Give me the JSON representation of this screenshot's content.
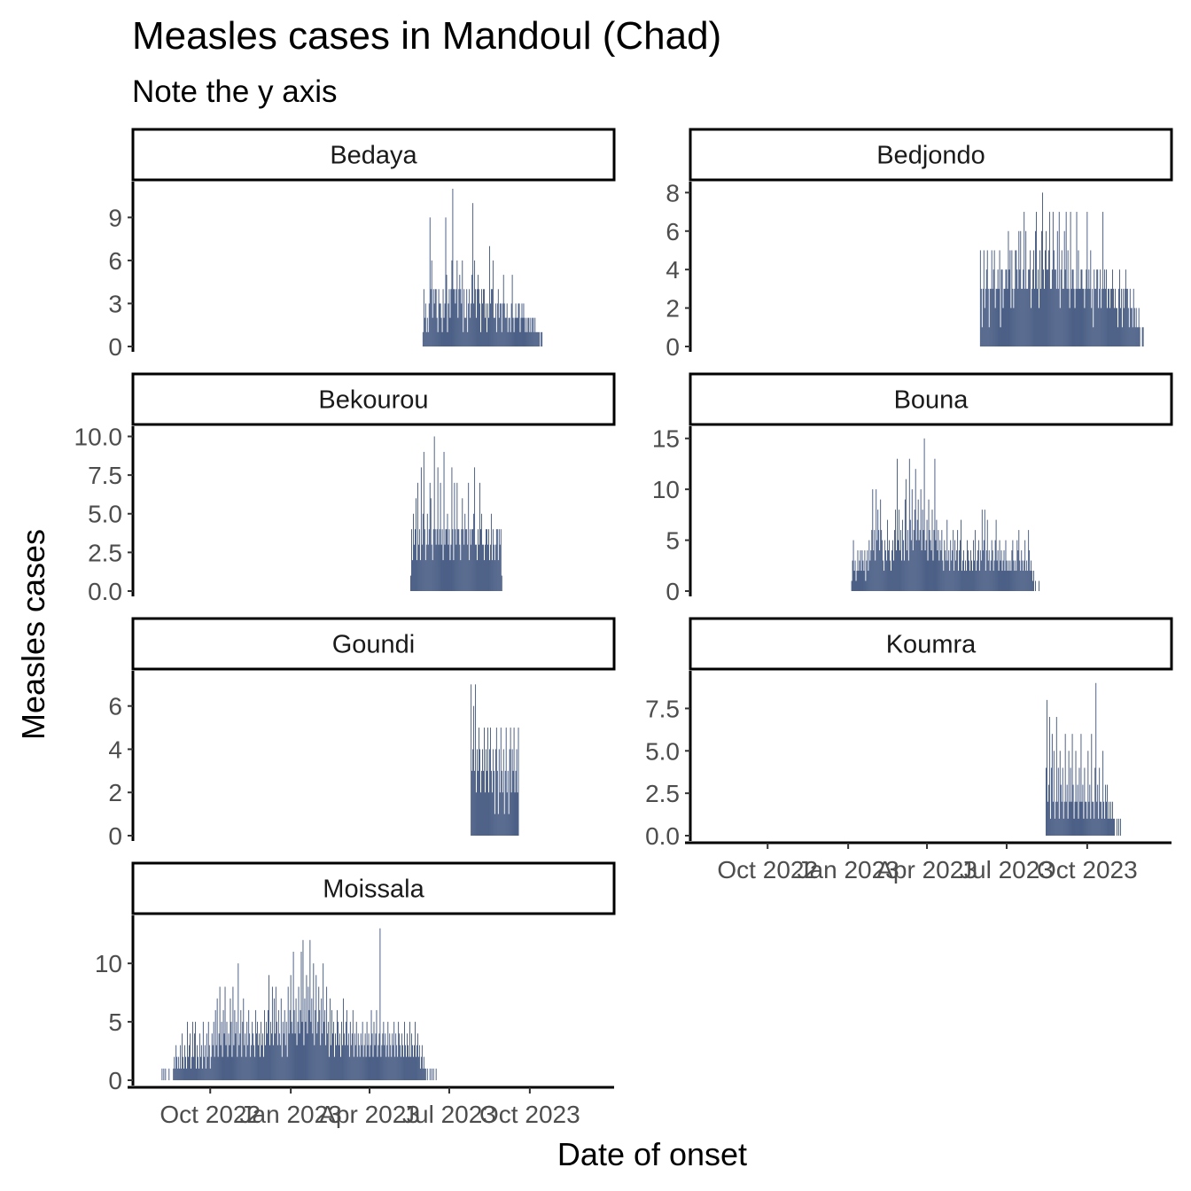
{
  "chart_data": {
    "type": "bar",
    "title": "Measles cases in Mandoul (Chad)",
    "subtitle": "Note the y axis",
    "xlabel": "Date of onset",
    "ylabel": "Measles cases",
    "bar_color": "#2f4673",
    "x_date_range": [
      "2022-07-29",
      "2023-12-12"
    ],
    "x_ticks": [
      {
        "date": "2022-10-01",
        "label": "Oct 2022"
      },
      {
        "date": "2023-01-01",
        "label": "Jan 2023"
      },
      {
        "date": "2023-04-01",
        "label": "Apr 2023"
      },
      {
        "date": "2023-07-01",
        "label": "Jul 2023"
      },
      {
        "date": "2023-10-01",
        "label": "Oct 2023"
      }
    ],
    "panels": [
      {
        "name": "Bedaya",
        "ylim": [
          0,
          11
        ],
        "y_ticks": [
          {
            "v": 0,
            "label": "0"
          },
          {
            "v": 3,
            "label": "3"
          },
          {
            "v": 6,
            "label": "6"
          },
          {
            "v": 9,
            "label": "9"
          }
        ],
        "start": "2023-06-01",
        "values": [
          1,
          4,
          2,
          3,
          1,
          2,
          1,
          3,
          9,
          4,
          6,
          2,
          4,
          3,
          4,
          4,
          2,
          1,
          4,
          3,
          3,
          2,
          1,
          4,
          2,
          3,
          9,
          5,
          1,
          3,
          4,
          2,
          4,
          6,
          11,
          4,
          4,
          3,
          4,
          6,
          2,
          4,
          5,
          4,
          3,
          6,
          1,
          4,
          2,
          2,
          4,
          1,
          3,
          4,
          2,
          3,
          5,
          10,
          3,
          6,
          4,
          2,
          4,
          5,
          4,
          3,
          1,
          4,
          3,
          4,
          4,
          2,
          3,
          1,
          3,
          2,
          7,
          3,
          4,
          4,
          6,
          2,
          2,
          3,
          1,
          3,
          4,
          2,
          3,
          3,
          1,
          3,
          5,
          3,
          2,
          2,
          3,
          1,
          2,
          2,
          1,
          3,
          5,
          2,
          1,
          2,
          3,
          2,
          2,
          3,
          3,
          1,
          2,
          3,
          2,
          3,
          2,
          1,
          2,
          1,
          2,
          2,
          1,
          2,
          1,
          2,
          2,
          1,
          2,
          1,
          1,
          1,
          1,
          1,
          0,
          1,
          1
        ]
      },
      {
        "name": "Bedjondo",
        "ylim": [
          0,
          8.2
        ],
        "y_ticks": [
          {
            "v": 0,
            "label": "0"
          },
          {
            "v": 2,
            "label": "2"
          },
          {
            "v": 4,
            "label": "4"
          },
          {
            "v": 6,
            "label": "6"
          },
          {
            "v": 8,
            "label": "8"
          }
        ],
        "start": "2023-06-01",
        "values": [
          5,
          3,
          1,
          3,
          5,
          2,
          3,
          4,
          5,
          3,
          1,
          3,
          3,
          5,
          3,
          4,
          5,
          2,
          3,
          3,
          4,
          3,
          5,
          1,
          4,
          4,
          2,
          3,
          3,
          4,
          4,
          3,
          6,
          4,
          5,
          2,
          5,
          3,
          2,
          3,
          5,
          5,
          4,
          3,
          6,
          4,
          6,
          3,
          3,
          4,
          7,
          3,
          6,
          3,
          3,
          4,
          4,
          5,
          2,
          3,
          4,
          5,
          3,
          6,
          7,
          3,
          4,
          2,
          5,
          3,
          6,
          8,
          4,
          3,
          5,
          6,
          4,
          4,
          5,
          7,
          3,
          3,
          4,
          7,
          5,
          4,
          4,
          3,
          6,
          3,
          7,
          2,
          4,
          5,
          3,
          3,
          6,
          4,
          7,
          3,
          5,
          3,
          2,
          7,
          3,
          4,
          4,
          3,
          2,
          3,
          7,
          3,
          5,
          3,
          3,
          4,
          4,
          3,
          3,
          2,
          3,
          4,
          7,
          3,
          4,
          3,
          5,
          2,
          3,
          1,
          4,
          3,
          3,
          4,
          4,
          2,
          3,
          4,
          2,
          3,
          7,
          3,
          4,
          3,
          4,
          2,
          3,
          3,
          2,
          3,
          3,
          4,
          3,
          2,
          3,
          2,
          2,
          1,
          3,
          4,
          2,
          3,
          1,
          3,
          2,
          3,
          4,
          3,
          3,
          2,
          1,
          3,
          2,
          2,
          1,
          3,
          2,
          1,
          2,
          1,
          1,
          2,
          1,
          0,
          0,
          1,
          1
        ]
      },
      {
        "name": "Bekourou",
        "ylim": [
          0,
          10.2
        ],
        "y_ticks": [
          {
            "v": 0,
            "label": "0.0"
          },
          {
            "v": 2.5,
            "label": "2.5"
          },
          {
            "v": 5,
            "label": "5.0"
          },
          {
            "v": 7.5,
            "label": "7.5"
          },
          {
            "v": 10,
            "label": "10.0"
          }
        ],
        "start": "2023-05-18",
        "values": [
          1,
          4,
          2,
          5,
          3,
          4,
          6,
          2,
          7,
          3,
          4,
          2,
          8,
          3,
          5,
          9,
          4,
          2,
          3,
          5,
          3,
          4,
          7,
          6,
          3,
          2,
          4,
          10,
          4,
          3,
          4,
          8,
          3,
          4,
          7,
          3,
          4,
          2,
          9,
          3,
          4,
          4,
          5,
          3,
          4,
          2,
          3,
          8,
          4,
          2,
          7,
          4,
          3,
          7,
          4,
          4,
          3,
          2,
          4,
          6,
          4,
          3,
          5,
          4,
          4,
          3,
          7,
          2,
          4,
          3,
          4,
          4,
          5,
          8,
          3,
          3,
          2,
          4,
          3,
          7,
          4,
          5,
          3,
          3,
          2,
          3,
          4,
          4,
          3,
          4,
          2,
          3,
          5,
          2,
          4,
          3,
          2,
          3,
          4,
          4,
          2,
          4,
          3,
          4,
          1
        ]
      },
      {
        "name": "Bouna",
        "ylim": [
          0,
          15.5
        ],
        "y_ticks": [
          {
            "v": 0,
            "label": "0"
          },
          {
            "v": 5,
            "label": "5"
          },
          {
            "v": 10,
            "label": "10"
          },
          {
            "v": 15,
            "label": "15"
          }
        ],
        "start": "2023-01-05",
        "values": [
          1,
          3,
          5,
          2,
          3,
          1,
          2,
          4,
          2,
          3,
          4,
          2,
          4,
          3,
          2,
          4,
          1,
          3,
          4,
          2,
          5,
          3,
          4,
          6,
          10,
          4,
          6,
          3,
          10,
          5,
          8,
          6,
          4,
          9,
          6,
          5,
          3,
          2,
          5,
          4,
          3,
          7,
          4,
          5,
          3,
          2,
          4,
          5,
          3,
          6,
          8,
          4,
          13,
          5,
          8,
          4,
          6,
          3,
          7,
          5,
          3,
          9,
          11,
          4,
          6,
          3,
          13,
          7,
          5,
          10,
          4,
          6,
          8,
          12,
          5,
          7,
          9,
          5,
          6,
          10,
          4,
          8,
          6,
          15,
          4,
          5,
          7,
          3,
          9,
          6,
          5,
          4,
          8,
          3,
          6,
          13,
          5,
          7,
          4,
          6,
          3,
          5,
          4,
          6,
          3,
          2,
          5,
          4,
          3,
          7,
          3,
          4,
          2,
          5,
          3,
          4,
          6,
          2,
          5,
          3,
          4,
          6,
          2,
          4,
          5,
          7,
          2,
          3,
          4,
          2,
          3,
          2,
          5,
          4,
          3,
          2,
          4,
          3,
          2,
          5,
          3,
          6,
          2,
          3,
          4,
          5,
          2,
          4,
          3,
          8,
          4,
          5,
          8,
          2,
          4,
          7,
          3,
          4,
          2,
          3,
          5,
          4,
          2,
          3,
          5,
          7,
          3,
          4,
          2,
          5,
          3,
          4,
          2,
          3,
          4,
          2,
          5,
          3,
          2,
          3,
          2,
          3,
          2,
          4,
          5,
          3,
          2,
          3,
          2,
          5,
          4,
          6,
          3,
          2,
          4,
          3,
          2,
          3,
          5,
          2,
          3,
          2,
          6,
          4,
          2,
          3,
          2,
          1,
          2,
          0,
          1,
          0,
          0,
          0,
          1
        ]
      },
      {
        "name": "Goundi",
        "ylim": [
          0,
          7.3
        ],
        "y_ticks": [
          {
            "v": 0,
            "label": "0"
          },
          {
            "v": 2,
            "label": "2"
          },
          {
            "v": 4,
            "label": "4"
          },
          {
            "v": 6,
            "label": "6"
          }
        ],
        "start": "2023-07-26",
        "values": [
          7,
          3,
          4,
          6,
          3,
          7,
          2,
          4,
          3,
          5,
          4,
          2,
          3,
          4,
          3,
          5,
          2,
          4,
          3,
          5,
          2,
          4,
          5,
          3,
          2,
          4,
          3,
          1,
          4,
          5,
          3,
          1,
          4,
          2,
          5,
          3,
          2,
          4,
          1,
          3,
          5,
          2,
          3,
          1,
          4,
          5,
          2,
          4,
          3,
          5,
          2,
          3,
          4,
          2,
          5
        ]
      },
      {
        "name": "Koumra",
        "ylim": [
          0,
          9.3
        ],
        "y_ticks": [
          {
            "v": 0,
            "label": "0.0"
          },
          {
            "v": 2.5,
            "label": "2.5"
          },
          {
            "v": 5,
            "label": "5.0"
          },
          {
            "v": 7.5,
            "label": "7.5"
          }
        ],
        "start": "2023-08-15",
        "values": [
          4,
          8,
          2,
          3,
          7,
          1,
          4,
          6,
          2,
          5,
          1,
          2,
          7,
          2,
          4,
          1,
          5,
          3,
          2,
          4,
          1,
          2,
          6,
          2,
          3,
          1,
          5,
          2,
          4,
          2,
          6,
          3,
          1,
          2,
          5,
          2,
          3,
          1,
          4,
          2,
          6,
          2,
          3,
          1,
          4,
          2,
          2,
          1,
          5,
          2,
          3,
          1,
          6,
          2,
          2,
          1,
          4,
          9,
          2,
          3,
          1,
          4,
          2,
          2,
          1,
          5,
          2,
          1,
          3,
          2,
          3,
          1,
          2,
          1,
          2,
          1,
          2,
          1,
          1,
          0,
          0,
          1,
          0,
          1,
          0,
          1
        ]
      },
      {
        "name": "Moissala",
        "ylim": [
          0,
          13.5
        ],
        "y_ticks": [
          {
            "v": 0,
            "label": "0"
          },
          {
            "v": 5,
            "label": "5"
          },
          {
            "v": 10,
            "label": "10"
          }
        ],
        "start": "2022-08-07",
        "values": [
          1,
          0,
          1,
          0,
          1,
          0,
          0,
          0,
          1,
          0,
          0,
          0,
          0,
          1,
          2,
          1,
          3,
          2,
          1,
          2,
          1,
          3,
          1,
          4,
          2,
          1,
          3,
          2,
          1,
          5,
          2,
          3,
          4,
          1,
          2,
          5,
          2,
          4,
          5,
          1,
          3,
          2,
          1,
          4,
          2,
          3,
          1,
          5,
          2,
          3,
          1,
          4,
          2,
          5,
          3,
          1,
          2,
          4,
          3,
          5,
          2,
          6,
          3,
          7,
          2,
          4,
          8,
          3,
          5,
          2,
          6,
          4,
          8,
          3,
          5,
          2,
          4,
          3,
          7,
          5,
          2,
          8,
          3,
          6,
          4,
          5,
          2,
          10,
          3,
          4,
          6,
          2,
          5,
          7,
          3,
          4,
          2,
          5,
          3,
          6,
          4,
          2,
          3,
          5,
          4,
          3,
          2,
          6,
          4,
          5,
          3,
          4,
          2,
          5,
          3,
          4,
          2,
          6,
          3,
          5,
          4,
          6,
          9,
          3,
          5,
          4,
          8,
          3,
          7,
          4,
          8,
          5,
          3,
          6,
          4,
          3,
          7,
          2,
          5,
          4,
          6,
          3,
          5,
          2,
          8,
          4,
          6,
          9,
          5,
          4,
          11,
          6,
          4,
          7,
          3,
          5,
          8,
          4,
          6,
          11,
          5,
          12,
          3,
          7,
          5,
          9,
          4,
          8,
          6,
          12,
          5,
          7,
          4,
          10,
          3,
          6,
          9,
          4,
          5,
          8,
          6,
          3,
          7,
          4,
          10,
          5,
          6,
          3,
          8,
          4,
          5,
          2,
          7,
          3,
          6,
          4,
          5,
          2,
          4,
          3,
          6,
          5,
          3,
          4,
          2,
          5,
          3,
          7,
          4,
          3,
          5,
          6,
          3,
          4,
          2,
          5,
          3,
          4,
          6,
          2,
          4,
          3,
          5,
          2,
          4,
          3,
          2,
          4,
          3,
          5,
          2,
          3,
          4,
          2,
          5,
          3,
          4,
          2,
          3,
          6,
          4,
          2,
          5,
          3,
          4,
          6,
          2,
          3,
          4,
          13,
          2,
          3,
          4,
          5,
          3,
          4,
          2,
          3,
          5,
          2,
          4,
          3,
          2,
          4,
          3,
          5,
          2,
          4,
          3,
          2,
          5,
          4,
          3,
          2,
          4,
          3,
          2,
          5,
          3,
          2,
          4,
          3,
          2,
          5,
          2,
          4,
          3,
          2,
          3,
          5,
          2,
          3,
          4,
          2,
          3,
          1,
          2,
          3,
          1,
          2,
          1,
          1,
          0,
          1,
          0,
          0,
          1,
          0,
          1,
          0,
          1,
          0,
          0,
          1
        ]
      }
    ]
  }
}
